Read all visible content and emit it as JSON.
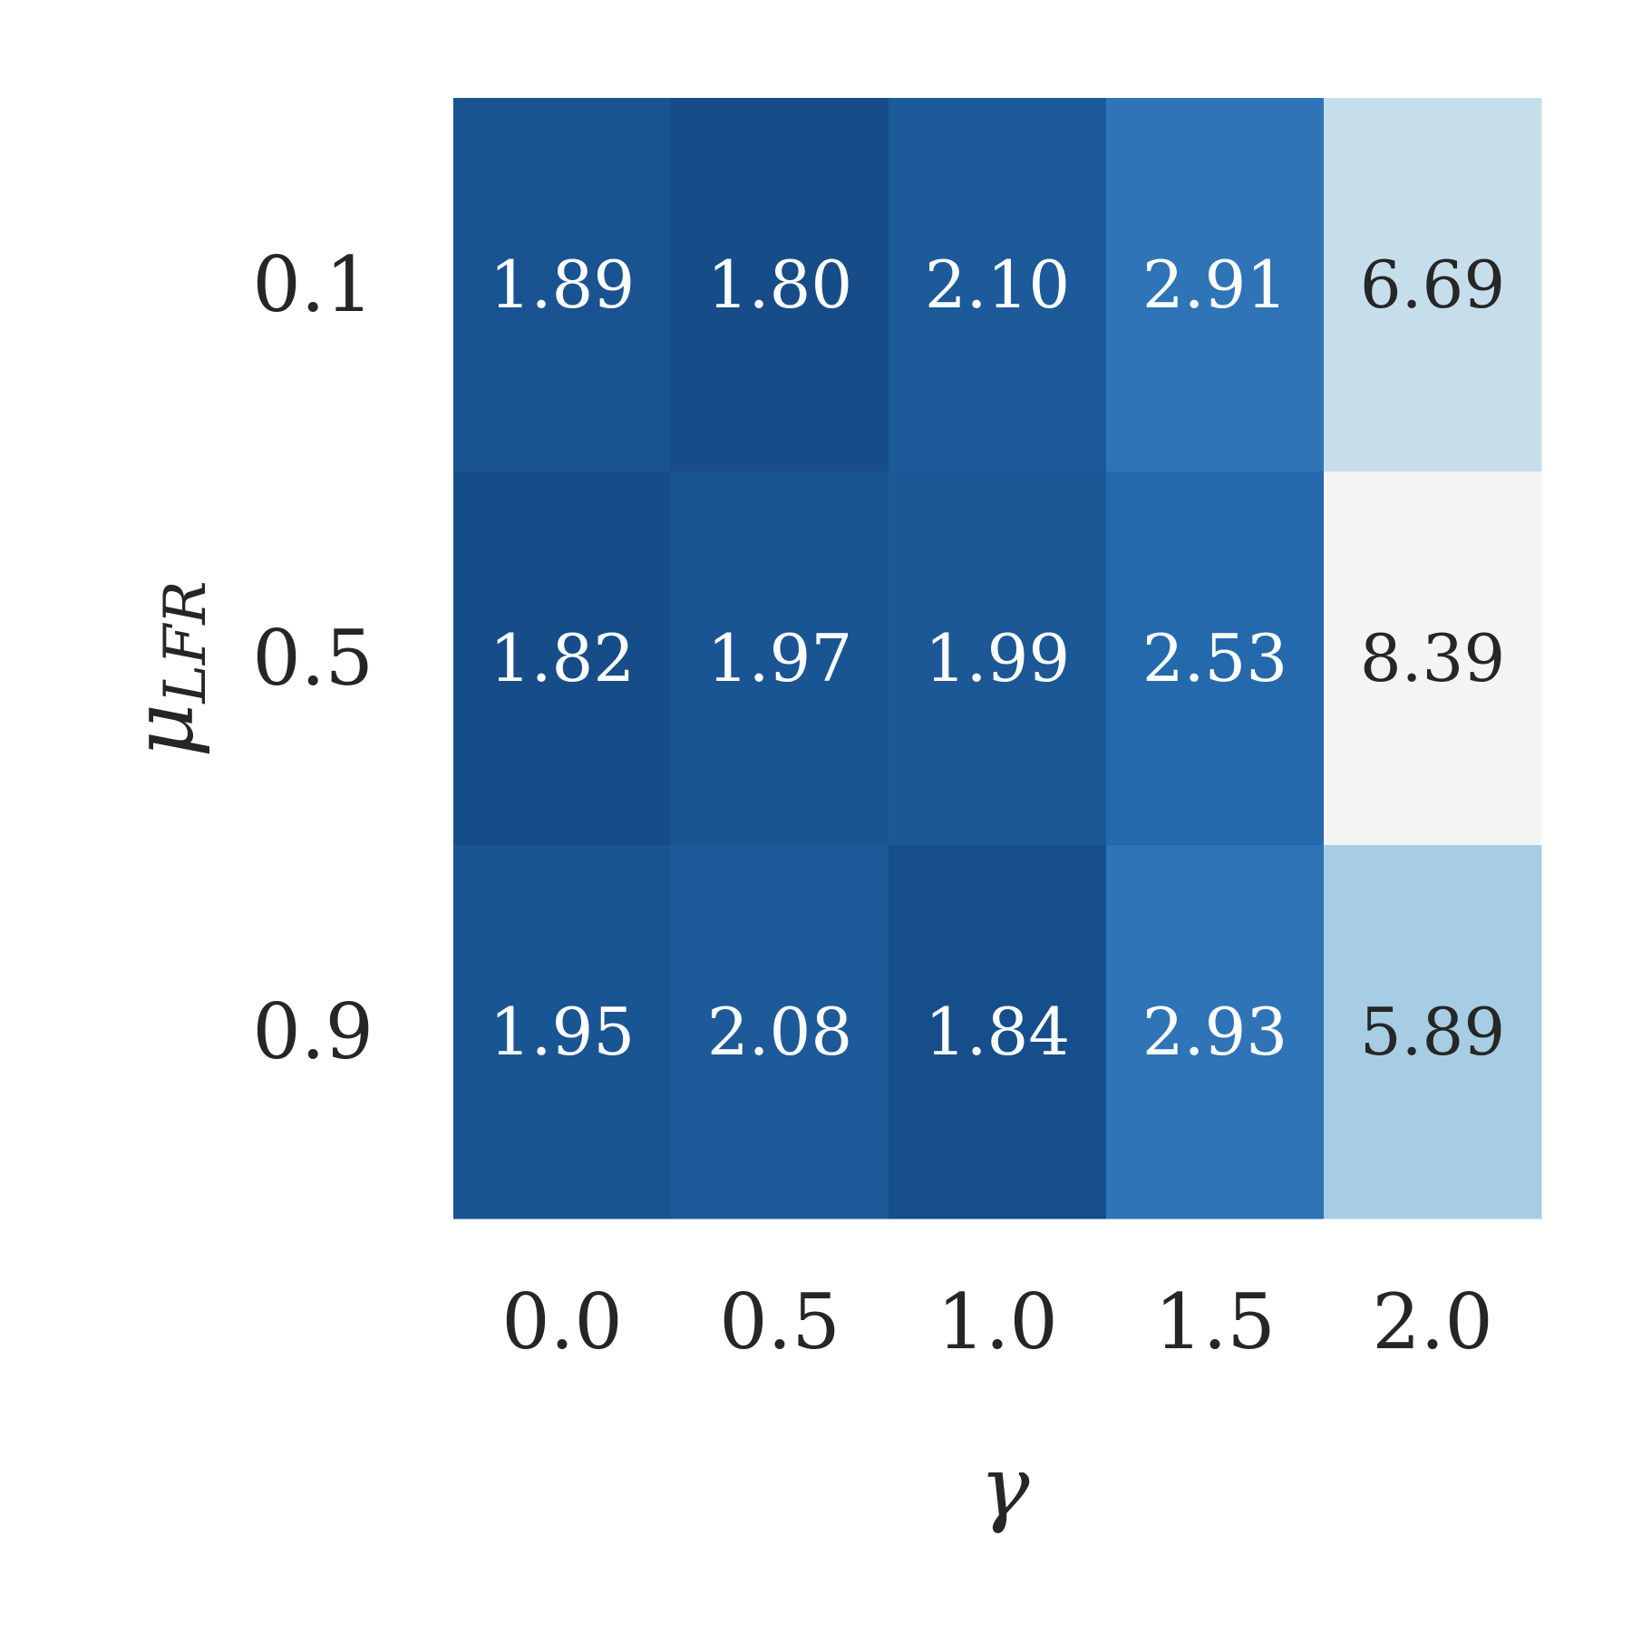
{
  "chart_data": {
    "type": "heatmap",
    "x_categories": [
      "0.0",
      "0.5",
      "1.0",
      "1.5",
      "2.0"
    ],
    "y_categories": [
      "0.1",
      "0.5",
      "0.9"
    ],
    "values": [
      [
        1.89,
        1.8,
        2.1,
        2.91,
        6.69
      ],
      [
        1.82,
        1.97,
        1.99,
        2.53,
        8.39
      ],
      [
        1.95,
        2.08,
        1.84,
        2.93,
        5.89
      ]
    ],
    "value_labels": [
      [
        "1.89",
        "1.80",
        "2.10",
        "2.91",
        "6.69"
      ],
      [
        "1.82",
        "1.97",
        "1.99",
        "2.53",
        "8.39"
      ],
      [
        "1.95",
        "2.08",
        "1.84",
        "2.93",
        "5.89"
      ]
    ],
    "cell_colors": [
      [
        "#1a5391",
        "#164d88",
        "#1c5a99",
        "#2e74b6",
        "#c6deec"
      ],
      [
        "#164d88",
        "#1a5593",
        "#1c5896",
        "#2469ac",
        "#f4f4f4"
      ],
      [
        "#1a5593",
        "#1d5a99",
        "#154e8a",
        "#2e74b6",
        "#a6cde3"
      ]
    ],
    "colormap": "Blues_r",
    "xlabel": "γ",
    "ylabel_main": "μ",
    "ylabel_sub": "LFR",
    "grid": false,
    "colorbar": false,
    "legend": "none"
  }
}
